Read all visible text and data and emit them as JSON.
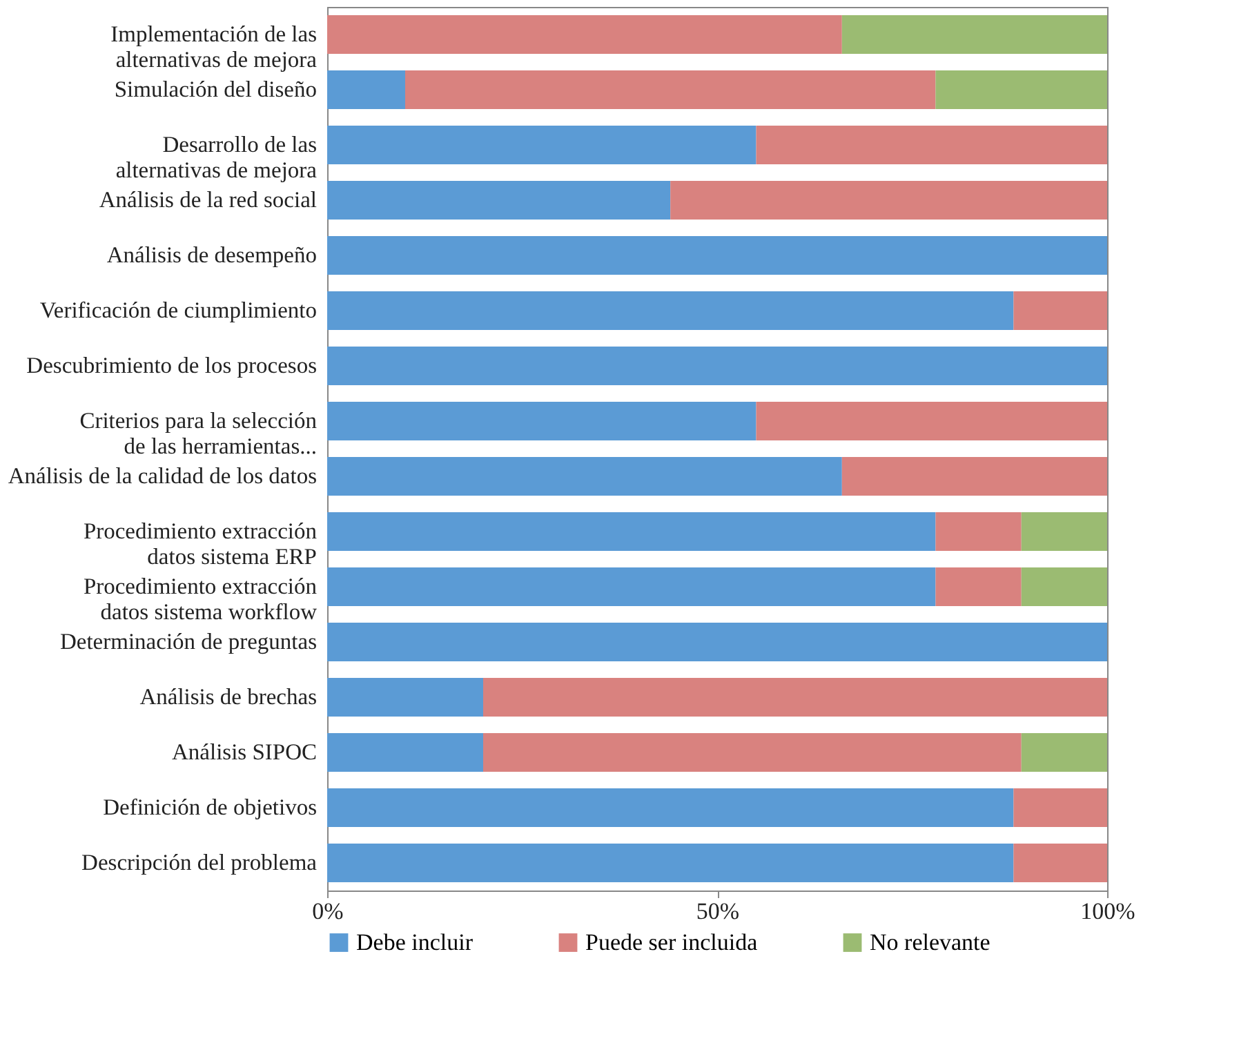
{
  "chart_data": {
    "type": "bar",
    "orientation": "horizontal",
    "stacked": true,
    "grid": false,
    "legend": "bottom",
    "categories": [
      "Implementación de las\nalternativas de mejora",
      "Simulación del diseño",
      "Desarrollo de las\nalternativas de mejora",
      "Análisis de la red social",
      "Análisis de desempeño",
      "Verificación de ciumplimiento",
      "Descubrimiento de los procesos",
      "Criterios para la selección\nde las herramientas...",
      "Análisis de la calidad de los datos",
      "Procedimiento extracción\ndatos sistema ERP",
      "Procedimiento extracción\ndatos sistema workflow",
      "Determinación de preguntas",
      "Análisis de brechas",
      "Análisis SIPOC",
      "Definición de objetivos",
      "Descripción del problema"
    ],
    "xlim": [
      0,
      100
    ],
    "xticks": [
      {
        "value": 0,
        "label": "0%"
      },
      {
        "value": 50,
        "label": "50%"
      },
      {
        "value": 100,
        "label": "100%"
      }
    ],
    "series": [
      {
        "name": "Debe incluir",
        "color": "#5b9bd5",
        "values": [
          0,
          10,
          55,
          44,
          100,
          88,
          100,
          55,
          66,
          78,
          78,
          100,
          20,
          20,
          88,
          88
        ]
      },
      {
        "name": "Puede ser incluida",
        "color": "#d9827f",
        "values": [
          66,
          68,
          45,
          56,
          0,
          12,
          0,
          45,
          34,
          11,
          11,
          0,
          80,
          69,
          12,
          12
        ]
      },
      {
        "name": "No relevante",
        "color": "#9bbb72",
        "values": [
          34,
          22,
          0,
          0,
          0,
          0,
          0,
          0,
          0,
          11,
          11,
          0,
          0,
          11,
          0,
          0
        ]
      }
    ]
  }
}
